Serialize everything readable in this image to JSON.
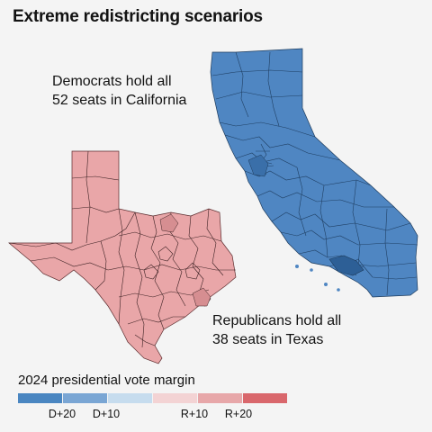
{
  "title": "Extreme redistricting scenarios",
  "california": {
    "caption_line1": "Democrats hold all",
    "caption_line2": "52 seats in California",
    "fill": "#4f86c2"
  },
  "texas": {
    "caption_line1": "Republicans hold all",
    "caption_line2": "38 seats in Texas",
    "fill": "#e9a6a8"
  },
  "legend": {
    "title": "2024 presidential vote margin",
    "swatches": [
      "#4a86c1",
      "#7aa6d4",
      "#c6dcee",
      "#f3d3d4",
      "#e7a7a9",
      "#d9676c"
    ],
    "ticks": [
      "D+20",
      "D+10",
      "R+10",
      "R+20"
    ]
  }
}
